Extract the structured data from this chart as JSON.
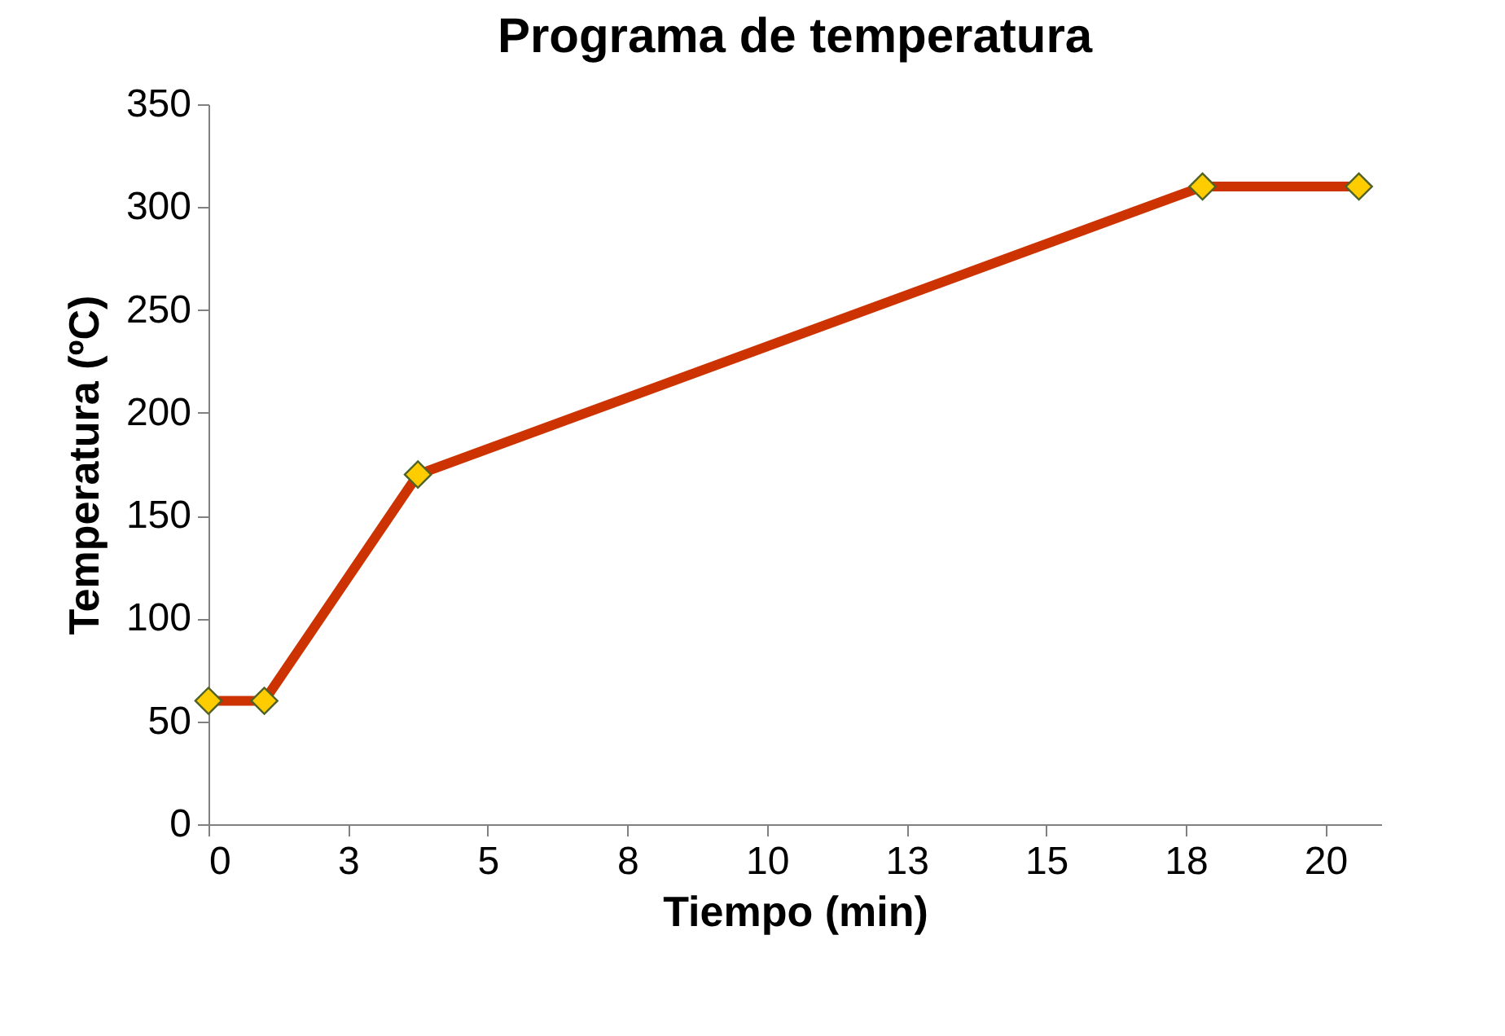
{
  "chart_data": {
    "type": "line",
    "title": "Programa de temperatura",
    "xlabel": "Tiempo (min)",
    "ylabel": "Temperatura (ºC)",
    "x": [
      0,
      1,
      3.75,
      17.8,
      20.6
    ],
    "series": [
      {
        "color": "#cc3300",
        "values": [
          60,
          60,
          170,
          310,
          310
        ]
      }
    ],
    "marker": "diamond",
    "xlim": [
      0,
      21
    ],
    "xticks": [
      0,
      {
        "value": 2.5,
        "label": "3"
      },
      5,
      {
        "value": 7.5,
        "label": "8"
      },
      10,
      {
        "value": 12.5,
        "label": "13"
      },
      15,
      {
        "value": 17.5,
        "label": "18"
      },
      20
    ],
    "ylim": [
      0,
      350
    ],
    "yticks": [
      0,
      50,
      100,
      150,
      200,
      250,
      300,
      350
    ]
  }
}
